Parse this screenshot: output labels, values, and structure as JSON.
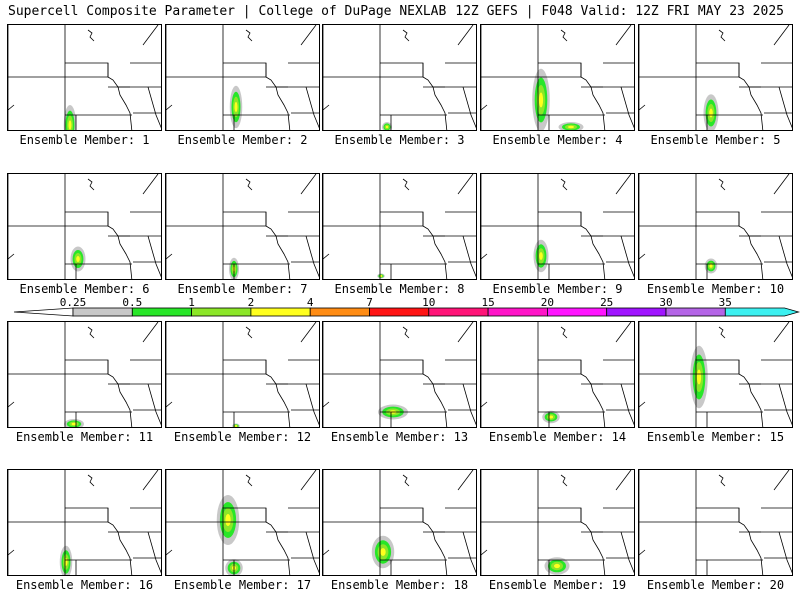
{
  "header": {
    "left_title": "Supercell Composite Parameter | College of DuPage NEXLAB",
    "right_title": "12Z GEFS | F048 Valid: 12Z FRI MAY 23 2025"
  },
  "member_label_prefix": "Ensemble Member: ",
  "members": [
    {
      "id": "1"
    },
    {
      "id": "2"
    },
    {
      "id": "3"
    },
    {
      "id": "4"
    },
    {
      "id": "5"
    },
    {
      "id": "6"
    },
    {
      "id": "7"
    },
    {
      "id": "8"
    },
    {
      "id": "9"
    },
    {
      "id": "10"
    },
    {
      "id": "11"
    },
    {
      "id": "12"
    },
    {
      "id": "13"
    },
    {
      "id": "14"
    },
    {
      "id": "15"
    },
    {
      "id": "16"
    },
    {
      "id": "17"
    },
    {
      "id": "18"
    },
    {
      "id": "19"
    },
    {
      "id": "20"
    }
  ],
  "colorbar": {
    "ticks": [
      "0.25",
      "0.5",
      "1",
      "2",
      "4",
      "7",
      "10",
      "15",
      "20",
      "25",
      "30",
      "35"
    ],
    "colors": [
      "#c8c8c8",
      "#28e628",
      "#8ce628",
      "#ffff1e",
      "#ff8c14",
      "#ff1414",
      "#ff1478",
      "#ff14c8",
      "#ff14ff",
      "#a014ff",
      "#b464e6",
      "#3cf0f0"
    ]
  }
}
